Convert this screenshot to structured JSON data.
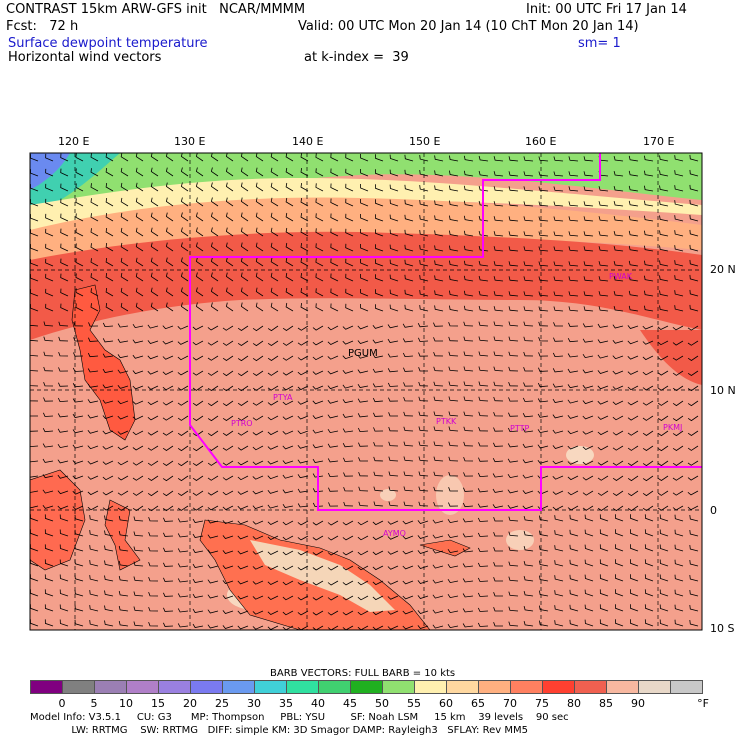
{
  "header": {
    "line1_left": "CONTRAST 15km ARW-GFS init   NCAR/MMMM",
    "line1_right": "Init: 00 UTC Fri 17 Jan 14",
    "line2_left": "Fcst:   72 h",
    "line2_right": "Valid: 00 UTC Mon 20 Jan 14 (10 ChT Mon 20 Jan 14)",
    "field_name": "Surface dewpoint temperature",
    "smoothing": "sm= 1",
    "vector_name": "Horizontal wind vectors",
    "level": "at k-index =  39"
  },
  "map": {
    "lon_labels": [
      "120 E",
      "130 E",
      "140 E",
      "150 E",
      "160 E",
      "170 E"
    ],
    "lat_labels": [
      "20 N",
      "10 N",
      "0",
      "10 S"
    ],
    "station_labels": [
      "PGUM",
      "PTYA",
      "PTKK",
      "PTRO",
      "PTTP",
      "PKMJ",
      "PWAK",
      "AYMO"
    ],
    "boundary_color": "#ff00ff"
  },
  "colorbar": {
    "title": "BARB VECTORS:  FULL BARB = 10 kts",
    "unit": "°F",
    "levels": [
      "0",
      "5",
      "10",
      "15",
      "20",
      "25",
      "30",
      "35",
      "40",
      "45",
      "50",
      "55",
      "60",
      "65",
      "70",
      "75",
      "80",
      "85",
      "90"
    ],
    "colors": [
      "#800080",
      "#808080",
      "#9b7fb4",
      "#b07fc8",
      "#9a80e0",
      "#7a7af0",
      "#6a9af0",
      "#40d0d8",
      "#30e0a0",
      "#40d070",
      "#20b020",
      "#90e070",
      "#fff0b0",
      "#ffd8a0",
      "#ffb080",
      "#ff8060",
      "#ff4030",
      "#f06050",
      "#f8b8a0",
      "#e8d8c8",
      "#c8c8c8"
    ]
  },
  "footer": {
    "line1": "Model Info: V3.5.1     CU: G3      MP: Thompson     PBL: YSU        SF: Noah LSM     15 km    39 levels    90 sec",
    "line2": "             LW: RRTMG    SW: RRTMG   DIFF: simple KM: 3D Smagor DAMP: Rayleigh3   SFLAY: Rev MM5"
  }
}
